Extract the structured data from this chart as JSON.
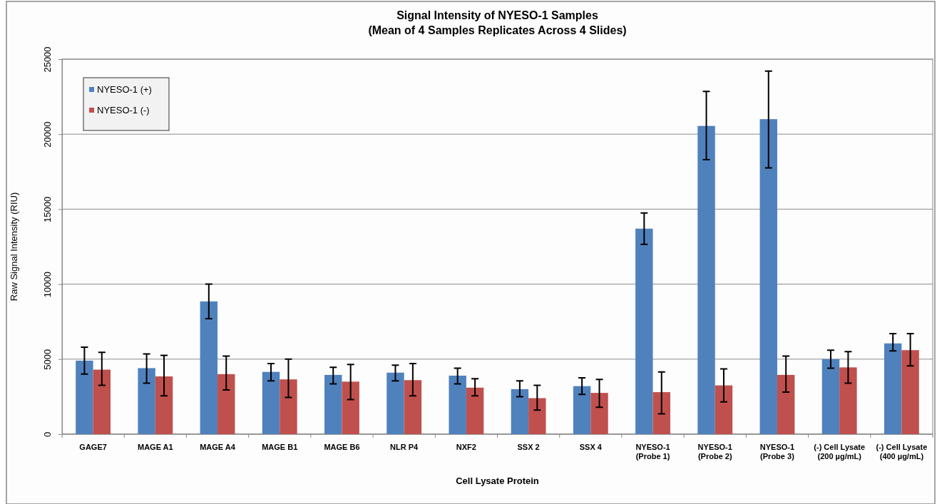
{
  "chart_data": {
    "type": "bar",
    "title": "Signal Intensity of NYESO-1 Samples",
    "subtitle": "(Mean of 4 Samples Replicates Across 4 Slides)",
    "xlabel": "Cell Lysate Protein",
    "ylabel": "Raw Signal Intensity (RIU)",
    "categories": [
      "GAGE7",
      "MAGE A1",
      "MAGE A4",
      "MAGE B1",
      "MAGE B6",
      "NLR P4",
      "NXF2",
      "SSX 2",
      "SSX 4",
      "NYESO-1\n(Probe 1)",
      "NYESO-1\n(Probe 2)",
      "NYESO-1\n(Probe 3)",
      "(-) Cell Lysate\n(200 µg/mL)",
      "(-) Cell Lysate\n(400 µg/mL)"
    ],
    "series": [
      {
        "name": "NYESO-1 (+)",
        "color": "#4f81bd",
        "values": [
          4900,
          4400,
          8850,
          4150,
          3950,
          4100,
          3900,
          3000,
          3200,
          13700,
          20550,
          21000,
          5000,
          6050
        ],
        "errors": [
          [
            4000,
            5800
          ],
          [
            3400,
            5350
          ],
          [
            7700,
            10000
          ],
          [
            3550,
            4700
          ],
          [
            3350,
            4450
          ],
          [
            3550,
            4600
          ],
          [
            3350,
            4400
          ],
          [
            2500,
            3550
          ],
          [
            2650,
            3750
          ],
          [
            12650,
            14750
          ],
          [
            18300,
            22850
          ],
          [
            17750,
            24200
          ],
          [
            4400,
            5600
          ],
          [
            5550,
            6700
          ]
        ]
      },
      {
        "name": "NYESO-1 (-)",
        "color": "#c0504d",
        "values": [
          4300,
          3850,
          4000,
          3650,
          3500,
          3600,
          3100,
          2400,
          2750,
          2800,
          3250,
          3950,
          4450,
          5600
        ],
        "errors": [
          [
            3250,
            5450
          ],
          [
            2550,
            5250
          ],
          [
            2950,
            5200
          ],
          [
            2450,
            5000
          ],
          [
            2300,
            4650
          ],
          [
            2550,
            4700
          ],
          [
            2550,
            3700
          ],
          [
            1600,
            3250
          ],
          [
            1800,
            3650
          ],
          [
            1350,
            4150
          ],
          [
            2150,
            4350
          ],
          [
            2800,
            5200
          ],
          [
            3400,
            5500
          ],
          [
            4550,
            6700
          ]
        ]
      }
    ],
    "ylim": [
      0,
      25000
    ],
    "yticks": [
      0,
      5000,
      10000,
      15000,
      20000,
      25000
    ],
    "grid": "y",
    "legend": "top left"
  }
}
